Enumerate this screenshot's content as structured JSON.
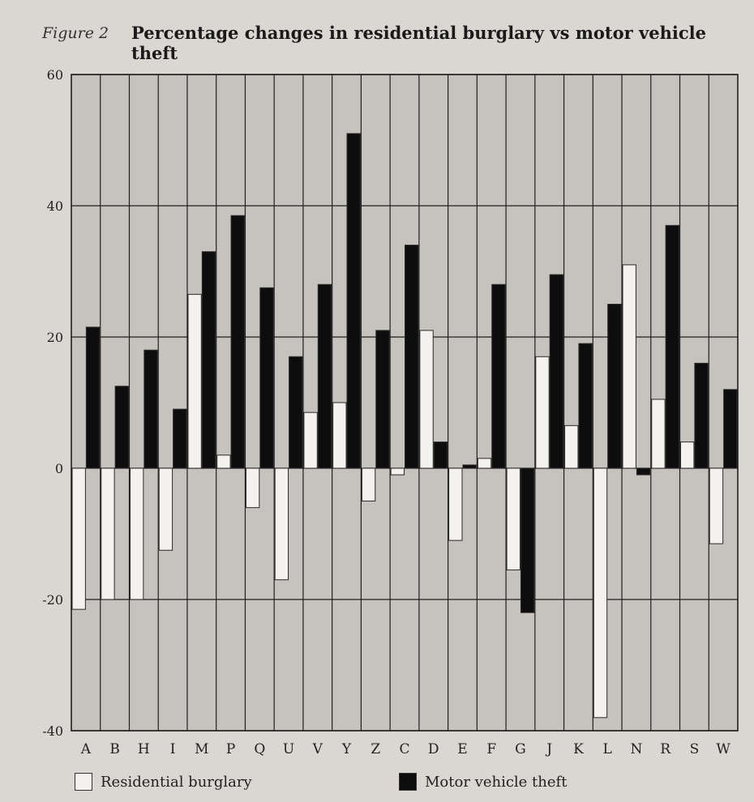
{
  "figure_label": "Figure 2",
  "chart_data": {
    "type": "bar",
    "title": "Percentage changes in residential burglary vs motor vehicle theft",
    "xlabel": "",
    "ylabel": "",
    "ylim": [
      -40,
      60
    ],
    "yticks": [
      60,
      40,
      20,
      0,
      -20,
      -40
    ],
    "grid": true,
    "categories": [
      "A",
      "B",
      "H",
      "I",
      "M",
      "P",
      "Q",
      "U",
      "V",
      "Y",
      "Z",
      "C",
      "D",
      "E",
      "F",
      "G",
      "J",
      "K",
      "L",
      "N",
      "R",
      "S",
      "W"
    ],
    "series": [
      {
        "name": "Residential burglary",
        "color": "#f4f2ef",
        "values": [
          -21.5,
          -20,
          -20,
          -12.5,
          26.5,
          2,
          -6,
          -17,
          8.5,
          10,
          -5,
          -1,
          21,
          -11,
          1.5,
          -15.5,
          17,
          6.5,
          -38,
          31,
          10.5,
          4,
          -11.5
        ]
      },
      {
        "name": "Motor vehicle theft",
        "color": "#0d0d0d",
        "values": [
          21.5,
          12.5,
          18,
          9,
          33,
          38.5,
          27.5,
          17,
          28,
          51,
          21,
          34,
          4,
          0.5,
          28,
          -22,
          29.5,
          19,
          25,
          -1,
          37,
          16,
          12
        ]
      }
    ],
    "legend_position": "bottom"
  }
}
